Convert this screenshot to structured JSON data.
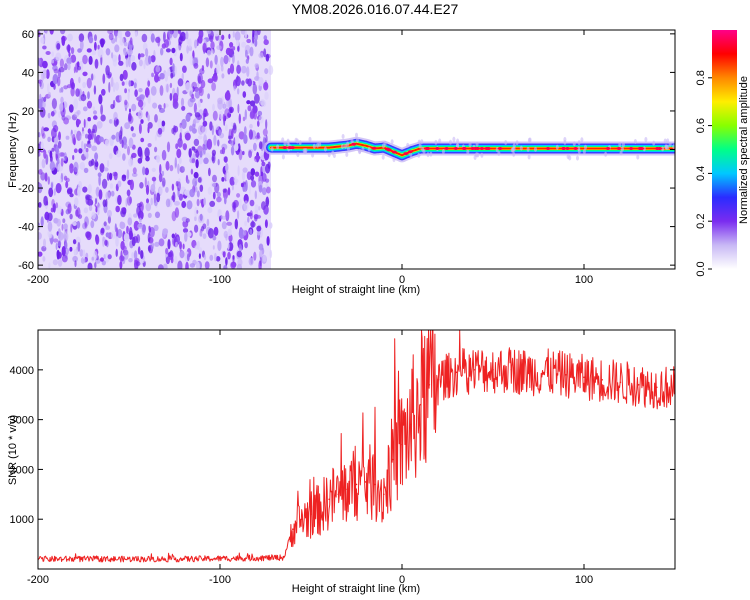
{
  "figure": {
    "title": "YM08.2026.016.07.44.E27"
  },
  "chart_data": [
    {
      "type": "heatmap",
      "name": "spectrogram",
      "xlabel": "Height of straight line (km)",
      "ylabel": "Frequency (Hz)",
      "xlim": [
        -200,
        150
      ],
      "ylim": [
        -62,
        62
      ],
      "xticks": [
        -200,
        -100,
        0,
        100
      ],
      "xtick_labels": [
        "-200",
        "-100",
        "0",
        "100"
      ],
      "yticks": [
        -60,
        -40,
        -20,
        0,
        20,
        40,
        60
      ],
      "ytick_labels": [
        "-60",
        "-40",
        "-20",
        "0",
        "20",
        "40",
        "60"
      ],
      "noise_region_x": [
        -200,
        -72
      ],
      "signal_trace": {
        "x": [
          -72,
          -60,
          -40,
          -30,
          -25,
          -20,
          -15,
          -10,
          -5,
          0,
          5,
          10,
          20,
          50,
          80,
          100,
          130,
          150
        ],
        "frequency": [
          1,
          1,
          1,
          2,
          3,
          2,
          0.5,
          1,
          -1,
          -3,
          -1,
          0.5,
          0.5,
          0.5,
          0.5,
          0.5,
          0.5,
          0.5
        ]
      },
      "colorbar": {
        "label": "Normalized spectral amplitude",
        "range": [
          0,
          1
        ],
        "ticks": [
          0.0,
          0.2,
          0.4,
          0.6,
          0.8
        ],
        "tick_labels": [
          "0.0",
          "0.2",
          "0.4",
          "0.6",
          "0.8"
        ],
        "colors": [
          "#ffffff",
          "#c8b8f5",
          "#7a2cf0",
          "#2a2cff",
          "#00c8ff",
          "#00ff88",
          "#88ff00",
          "#ffee00",
          "#ff8800",
          "#ff0000",
          "#ff0088"
        ]
      }
    },
    {
      "type": "line",
      "name": "snr",
      "xlabel": "Height of straight line (km)",
      "ylabel": "SNR (10 * v/v)",
      "xlim": [
        -200,
        150
      ],
      "ylim": [
        0,
        4800
      ],
      "xticks": [
        -200,
        -100,
        0,
        100
      ],
      "xtick_labels": [
        "-200",
        "-100",
        "0",
        "100"
      ],
      "yticks": [
        1000,
        2000,
        3000,
        4000
      ],
      "ytick_labels": [
        "1000",
        "2000",
        "3000",
        "4000"
      ],
      "color": "#ee2222",
      "series": [
        {
          "name": "SNR",
          "x": [
            -200,
            -180,
            -160,
            -140,
            -120,
            -100,
            -80,
            -65,
            -60,
            -55,
            -50,
            -45,
            -40,
            -35,
            -30,
            -25,
            -20,
            -15,
            -10,
            -5,
            0,
            5,
            10,
            15,
            20,
            30,
            40,
            50,
            60,
            70,
            80,
            90,
            100,
            110,
            120,
            130,
            140,
            150
          ],
          "values": [
            200,
            200,
            200,
            200,
            200,
            210,
            220,
            230,
            800,
            1000,
            1100,
            1200,
            1400,
            1500,
            1600,
            1700,
            1750,
            1700,
            1500,
            2200,
            2500,
            2900,
            3300,
            3700,
            3800,
            3950,
            4000,
            4000,
            4000,
            3950,
            3950,
            3900,
            3850,
            3800,
            3750,
            3700,
            3650,
            3650
          ]
        }
      ]
    }
  ]
}
